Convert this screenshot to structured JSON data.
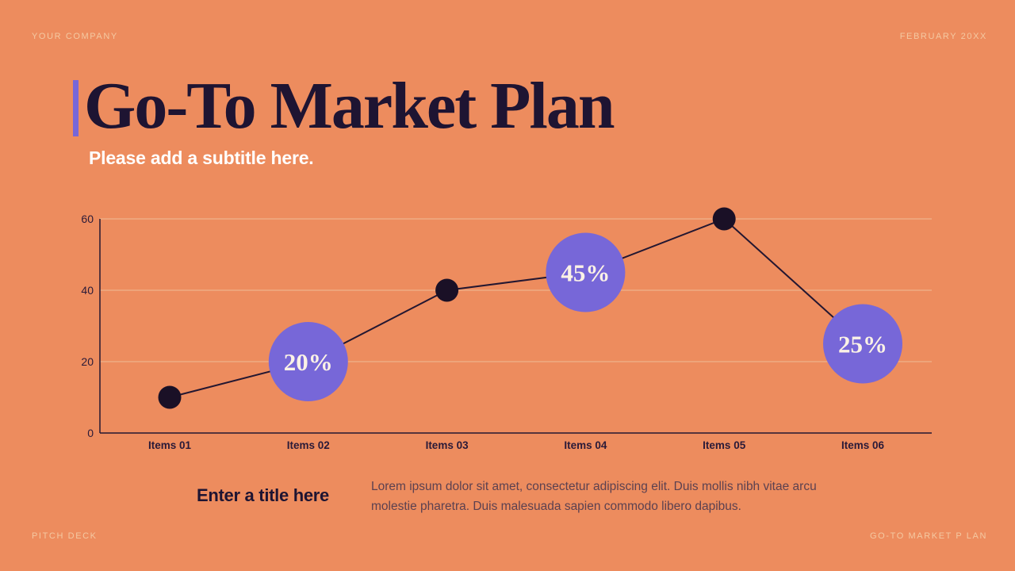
{
  "slide": {
    "company": "YOUR COMPANY",
    "date": "FEBRUARY 20XX",
    "title": "Go-To Market Plan",
    "subtitle": "Please add a subtitle here.",
    "footer_left": "PITCH DECK",
    "footer_right": "GO-TO MARKET P LAN",
    "bottom": {
      "heading": "Enter a title here",
      "body": "Lorem ipsum dolor sit amet, consectetur adipiscing elit. Duis mollis nibh vitae arcu molestie pharetra. Duis malesuada sapien commodo libero dapibus."
    },
    "theme": {
      "background": "#ED8C5E",
      "accent_purple": "#7767D8",
      "ink_dark": "#1E1432",
      "cream_text": "#F4C9A2",
      "body_text": "#5C4150",
      "subtitle_white": "#FFFFFF"
    }
  },
  "chart_data": {
    "type": "line",
    "title": "",
    "xlabel": "",
    "ylabel": "",
    "categories": [
      "Items 01",
      "Items 02",
      "Items 03",
      "Items 04",
      "Items 05",
      "Items 06"
    ],
    "values": [
      10,
      20,
      40,
      45,
      60,
      25
    ],
    "point_styles": [
      "dot",
      "bubble",
      "dot",
      "bubble",
      "dot",
      "bubble"
    ],
    "point_labels": [
      "",
      "20%",
      "",
      "45%",
      "",
      "25%"
    ],
    "ylim": [
      0,
      60
    ],
    "yticks": [
      0,
      20,
      40,
      60
    ],
    "grid": true,
    "legend_position": "none",
    "colors": {
      "line": "#241731",
      "dot": "#1A1026",
      "bubble": "#7767D8",
      "bubble_text": "#FBF2E6",
      "grid": "#F0C39E",
      "axis": "#241731",
      "tick_text": "#2A1A38"
    }
  }
}
